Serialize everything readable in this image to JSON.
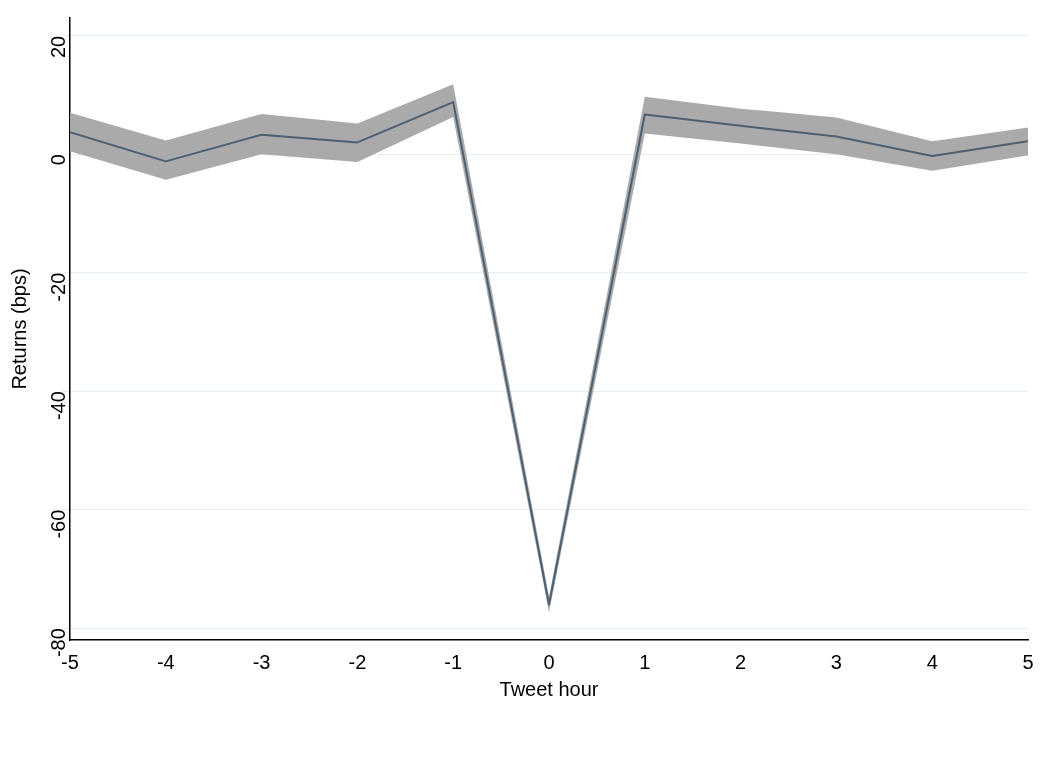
{
  "chart_data": {
    "type": "line",
    "xlabel": "Tweet hour",
    "ylabel": "Returns (bps)",
    "x": [
      -5,
      -4,
      -3,
      -2,
      -1,
      0,
      1,
      2,
      3,
      4,
      5
    ],
    "series": [
      {
        "color": "#4d6072",
        "values": [
          3.7,
          -1.2,
          3.3,
          2,
          8.8,
          -76,
          6.7,
          4.8,
          3,
          -0.3,
          2.2
        ],
        "lower": [
          0.5,
          -4.3,
          0,
          -1.3,
          6.3,
          -77.3,
          3.5,
          1.8,
          0,
          -2.8,
          -0.2
        ],
        "upper": [
          7,
          2.3,
          6.8,
          5.2,
          11.8,
          -74.7,
          9.7,
          7.7,
          6.2,
          2.2,
          4.5
        ]
      }
    ],
    "xlim": [
      -5,
      5
    ],
    "xticks": [
      -5,
      -4,
      -3,
      -2,
      -1,
      0,
      1,
      2,
      3,
      4,
      5
    ],
    "ylim": [
      -82,
      23
    ],
    "yticks": [
      -80,
      -60,
      -40,
      -20,
      0,
      20
    ],
    "grid": "y",
    "legend": false,
    "marker": "none",
    "line_style": "solid"
  }
}
